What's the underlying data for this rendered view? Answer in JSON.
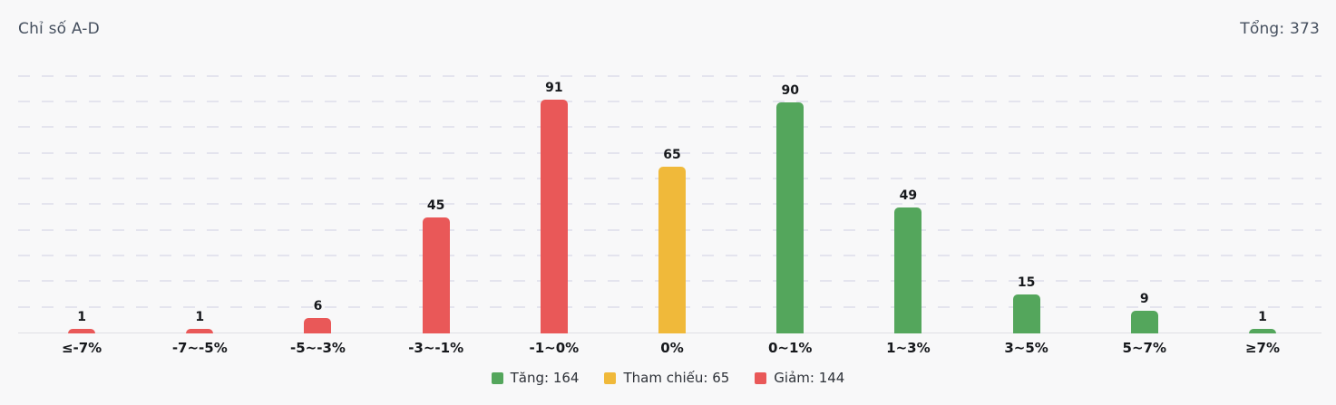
{
  "header": {
    "title": "Chỉ số A-D",
    "total_label": "Tổng: 373"
  },
  "chart_data": {
    "type": "bar",
    "title": "Chỉ số A-D",
    "categories": [
      "≤-7%",
      "-7~-5%",
      "-5~-3%",
      "-3~-1%",
      "-1~0%",
      "0%",
      "0~1%",
      "1~3%",
      "3~5%",
      "5~7%",
      "≥7%"
    ],
    "values": [
      1,
      1,
      6,
      45,
      91,
      65,
      90,
      49,
      15,
      9,
      1
    ],
    "groups": [
      "down",
      "down",
      "down",
      "down",
      "down",
      "reference",
      "up",
      "up",
      "up",
      "up",
      "up"
    ],
    "colors": {
      "up": "#54a65c",
      "reference": "#f0b93a",
      "down": "#e95858"
    },
    "total": 373,
    "xlabel": "",
    "ylabel": "",
    "ylim": [
      0,
      100
    ],
    "grid": "horizontal-dashed",
    "grid_step": 10,
    "legend_position": "bottom",
    "legend": [
      {
        "label": "Tăng: 164",
        "group": "up"
      },
      {
        "label": "Tham chiếu: 65",
        "group": "reference"
      },
      {
        "label": "Giảm: 144",
        "group": "down"
      }
    ]
  }
}
